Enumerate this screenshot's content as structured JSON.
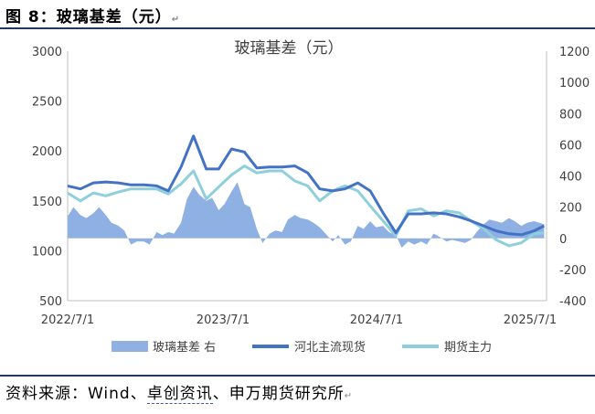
{
  "figure": {
    "title": "图 8：玻璃基差（元）",
    "source_prefix": "资料来源：Wind、",
    "source_underlined": "卓创资讯",
    "source_suffix": "、申万期货研究所",
    "return_mark": "↵"
  },
  "chart_data": {
    "type": "line",
    "title": "玻璃基差（元）",
    "x_ticks": [
      "2022/7/1",
      "2023/7/1",
      "2024/7/1",
      "2025/7/1"
    ],
    "x_range": [
      "2022-07-01",
      "2025-08-31"
    ],
    "y_left": {
      "min": 500,
      "max": 3000,
      "ticks": [
        500,
        1000,
        1500,
        2000,
        2500,
        3000
      ]
    },
    "y_right": {
      "min": -400,
      "max": 1200,
      "ticks": [
        -400,
        -200,
        0,
        200,
        400,
        600,
        800,
        1000,
        1200
      ]
    },
    "legend": [
      "玻璃基差 右",
      "河北主流现货",
      "期货主力"
    ],
    "legend_position": "bottom",
    "colors": {
      "basis": "#8eb0e3",
      "spot": "#4472c4",
      "futures": "#8fcfdc"
    },
    "series": [
      {
        "name": "河北主流现货",
        "axis": "left",
        "style": "line",
        "points": [
          [
            "2022-07-01",
            1650
          ],
          [
            "2022-08-01",
            1620
          ],
          [
            "2022-09-01",
            1680
          ],
          [
            "2022-10-01",
            1690
          ],
          [
            "2022-11-01",
            1680
          ],
          [
            "2022-12-01",
            1660
          ],
          [
            "2023-01-01",
            1660
          ],
          [
            "2023-02-01",
            1650
          ],
          [
            "2023-03-01",
            1600
          ],
          [
            "2023-04-01",
            1840
          ],
          [
            "2023-05-01",
            2150
          ],
          [
            "2023-06-01",
            1820
          ],
          [
            "2023-07-01",
            1820
          ],
          [
            "2023-08-01",
            2020
          ],
          [
            "2023-09-01",
            1990
          ],
          [
            "2023-10-01",
            1830
          ],
          [
            "2023-11-01",
            1840
          ],
          [
            "2023-12-01",
            1840
          ],
          [
            "2024-01-01",
            1850
          ],
          [
            "2024-02-01",
            1780
          ],
          [
            "2024-03-01",
            1620
          ],
          [
            "2024-04-01",
            1600
          ],
          [
            "2024-05-01",
            1620
          ],
          [
            "2024-06-01",
            1680
          ],
          [
            "2024-07-01",
            1600
          ],
          [
            "2024-08-01",
            1380
          ],
          [
            "2024-09-01",
            1180
          ],
          [
            "2024-10-01",
            1370
          ],
          [
            "2024-11-01",
            1370
          ],
          [
            "2024-12-01",
            1380
          ],
          [
            "2025-01-01",
            1370
          ],
          [
            "2025-02-01",
            1340
          ],
          [
            "2025-03-01",
            1300
          ],
          [
            "2025-04-01",
            1250
          ],
          [
            "2025-05-01",
            1200
          ],
          [
            "2025-06-01",
            1170
          ],
          [
            "2025-07-01",
            1160
          ],
          [
            "2025-08-01",
            1200
          ],
          [
            "2025-08-25",
            1250
          ]
        ]
      },
      {
        "name": "期货主力",
        "axis": "left",
        "style": "line",
        "points": [
          [
            "2022-07-01",
            1580
          ],
          [
            "2022-08-01",
            1500
          ],
          [
            "2022-09-01",
            1580
          ],
          [
            "2022-10-01",
            1550
          ],
          [
            "2022-11-01",
            1590
          ],
          [
            "2022-12-01",
            1620
          ],
          [
            "2023-01-01",
            1620
          ],
          [
            "2023-02-01",
            1620
          ],
          [
            "2023-03-01",
            1570
          ],
          [
            "2023-04-01",
            1670
          ],
          [
            "2023-05-01",
            1800
          ],
          [
            "2023-06-01",
            1520
          ],
          [
            "2023-07-01",
            1640
          ],
          [
            "2023-08-01",
            1760
          ],
          [
            "2023-09-01",
            1850
          ],
          [
            "2023-10-01",
            1780
          ],
          [
            "2023-11-01",
            1800
          ],
          [
            "2023-12-01",
            1800
          ],
          [
            "2024-01-01",
            1700
          ],
          [
            "2024-02-01",
            1650
          ],
          [
            "2024-03-01",
            1500
          ],
          [
            "2024-04-01",
            1600
          ],
          [
            "2024-05-01",
            1650
          ],
          [
            "2024-06-01",
            1600
          ],
          [
            "2024-07-01",
            1450
          ],
          [
            "2024-08-01",
            1300
          ],
          [
            "2024-09-01",
            1150
          ],
          [
            "2024-10-01",
            1400
          ],
          [
            "2024-11-01",
            1420
          ],
          [
            "2024-12-01",
            1350
          ],
          [
            "2025-01-01",
            1400
          ],
          [
            "2025-02-01",
            1380
          ],
          [
            "2025-03-01",
            1300
          ],
          [
            "2025-04-01",
            1220
          ],
          [
            "2025-05-01",
            1110
          ],
          [
            "2025-06-01",
            1050
          ],
          [
            "2025-07-01",
            1080
          ],
          [
            "2025-08-01",
            1170
          ],
          [
            "2025-08-25",
            1180
          ]
        ]
      },
      {
        "name": "玻璃基差 右",
        "axis": "right",
        "style": "area",
        "points": [
          [
            "2022-07-01",
            140
          ],
          [
            "2022-07-15",
            200
          ],
          [
            "2022-08-01",
            150
          ],
          [
            "2022-08-15",
            130
          ],
          [
            "2022-09-01",
            160
          ],
          [
            "2022-09-15",
            200
          ],
          [
            "2022-10-01",
            150
          ],
          [
            "2022-10-15",
            100
          ],
          [
            "2022-11-01",
            80
          ],
          [
            "2022-11-15",
            50
          ],
          [
            "2022-12-01",
            -40
          ],
          [
            "2022-12-15",
            -20
          ],
          [
            "2023-01-01",
            -20
          ],
          [
            "2023-01-15",
            -40
          ],
          [
            "2023-02-01",
            40
          ],
          [
            "2023-02-15",
            20
          ],
          [
            "2023-03-01",
            40
          ],
          [
            "2023-03-15",
            30
          ],
          [
            "2023-04-01",
            100
          ],
          [
            "2023-04-15",
            250
          ],
          [
            "2023-05-01",
            330
          ],
          [
            "2023-05-15",
            280
          ],
          [
            "2023-06-01",
            240
          ],
          [
            "2023-06-15",
            260
          ],
          [
            "2023-07-01",
            180
          ],
          [
            "2023-07-15",
            220
          ],
          [
            "2023-08-01",
            300
          ],
          [
            "2023-08-15",
            360
          ],
          [
            "2023-09-01",
            220
          ],
          [
            "2023-09-15",
            200
          ],
          [
            "2023-10-01",
            60
          ],
          [
            "2023-10-15",
            -30
          ],
          [
            "2023-11-01",
            30
          ],
          [
            "2023-11-15",
            50
          ],
          [
            "2023-12-01",
            40
          ],
          [
            "2023-12-15",
            120
          ],
          [
            "2024-01-01",
            150
          ],
          [
            "2024-01-15",
            130
          ],
          [
            "2024-02-01",
            120
          ],
          [
            "2024-02-15",
            100
          ],
          [
            "2024-03-01",
            70
          ],
          [
            "2024-03-15",
            30
          ],
          [
            "2024-04-01",
            -20
          ],
          [
            "2024-04-15",
            20
          ],
          [
            "2024-05-01",
            -40
          ],
          [
            "2024-05-15",
            -20
          ],
          [
            "2024-06-01",
            80
          ],
          [
            "2024-06-15",
            60
          ],
          [
            "2024-07-01",
            110
          ],
          [
            "2024-07-15",
            70
          ],
          [
            "2024-08-01",
            80
          ],
          [
            "2024-08-15",
            40
          ],
          [
            "2024-09-01",
            20
          ],
          [
            "2024-09-15",
            -60
          ],
          [
            "2024-10-01",
            -20
          ],
          [
            "2024-10-15",
            -40
          ],
          [
            "2024-11-01",
            -20
          ],
          [
            "2024-11-15",
            -40
          ],
          [
            "2024-12-01",
            30
          ],
          [
            "2024-12-15",
            10
          ],
          [
            "2025-01-01",
            -20
          ],
          [
            "2025-01-15",
            -10
          ],
          [
            "2025-02-01",
            -20
          ],
          [
            "2025-02-15",
            -30
          ],
          [
            "2025-03-01",
            -10
          ],
          [
            "2025-03-15",
            40
          ],
          [
            "2025-04-01",
            90
          ],
          [
            "2025-04-15",
            120
          ],
          [
            "2025-05-01",
            110
          ],
          [
            "2025-05-15",
            100
          ],
          [
            "2025-06-01",
            130
          ],
          [
            "2025-06-15",
            110
          ],
          [
            "2025-07-01",
            80
          ],
          [
            "2025-07-15",
            100
          ],
          [
            "2025-08-01",
            110
          ],
          [
            "2025-08-25",
            90
          ]
        ]
      }
    ]
  }
}
